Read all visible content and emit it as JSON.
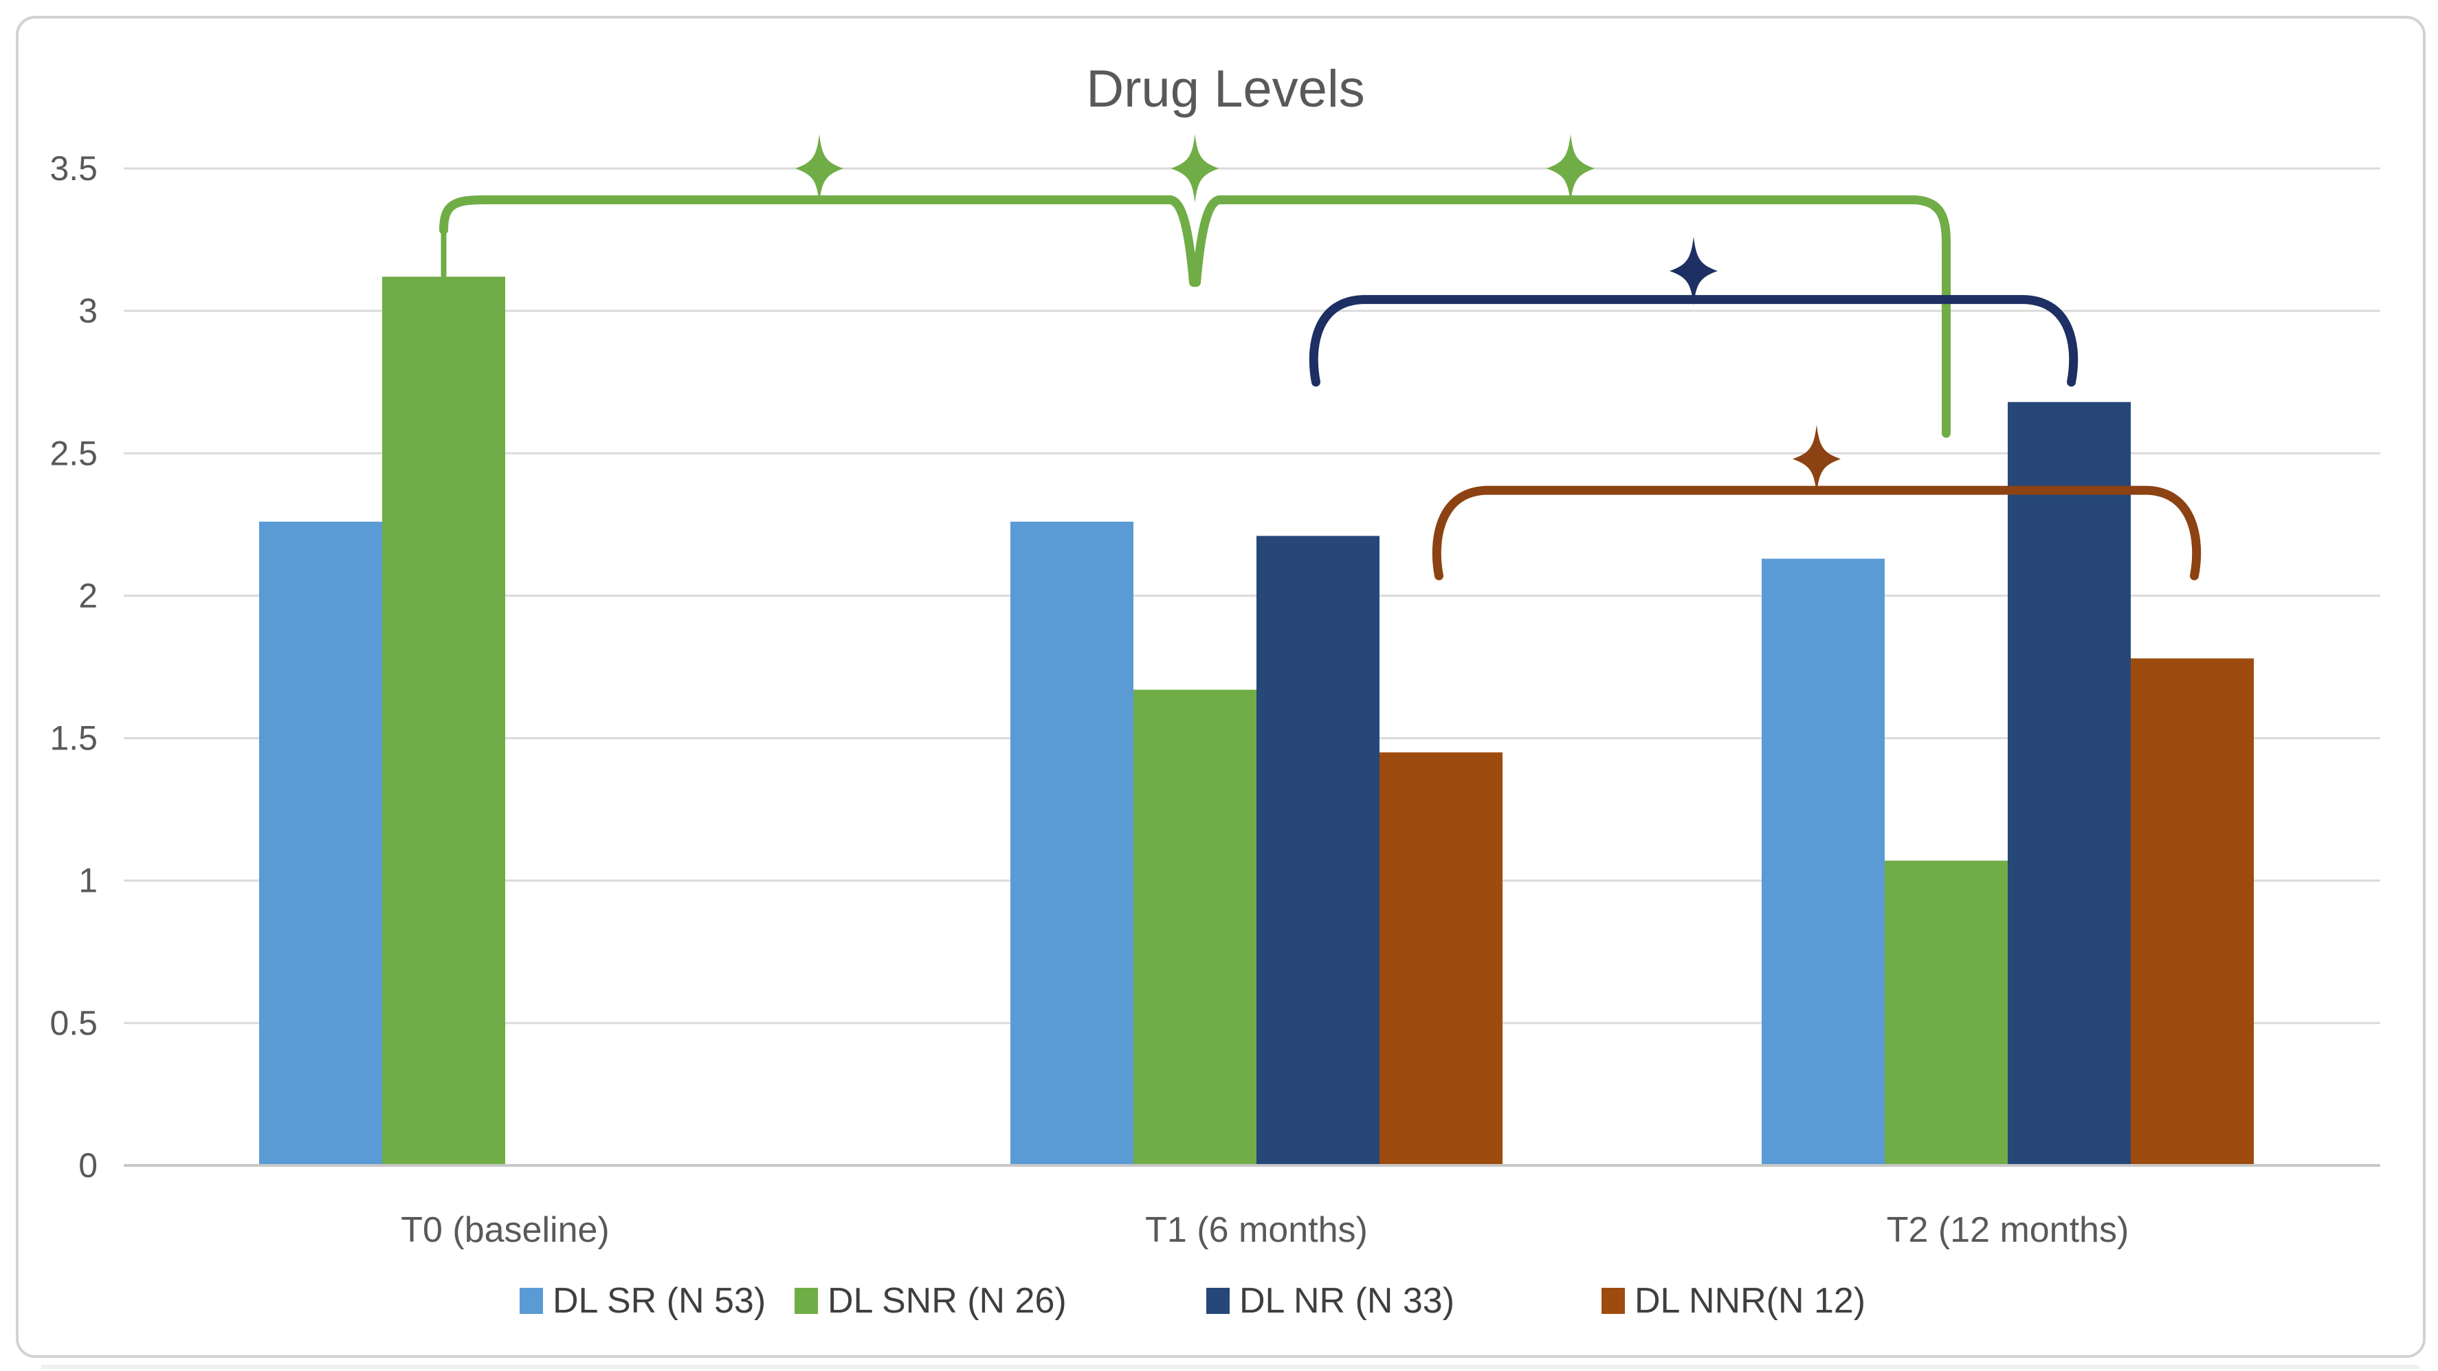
{
  "chart_data": {
    "type": "bar",
    "title": "Drug Levels",
    "title_color": "#595959",
    "xlabel": "",
    "ylabel": "",
    "ylim": [
      0,
      3.5
    ],
    "ytick_step": 0.5,
    "ytick_labels": [
      "0",
      "0.5",
      "1",
      "1.5",
      "2",
      "2.5",
      "3",
      "3.5"
    ],
    "grid": true,
    "gridline_color": "#DADADA",
    "axis_line_color": "#C8C8C8",
    "frame_border_color": "#D2D2D2",
    "tick_label_color": "#595959",
    "category_label_color": "#595959",
    "legend_position": "bottom",
    "legend_text_color": "#3F3F3F",
    "categories": [
      "T0 (baseline)",
      "T1 (6 months)",
      "T2 (12 months)"
    ],
    "series": [
      {
        "name": "DL SR (N 53)",
        "color": "#5B9BD5",
        "values": [
          2.26,
          2.26,
          2.13
        ]
      },
      {
        "name": "DL SNR (N 26)",
        "color": "#70AD47",
        "values": [
          3.12,
          1.67,
          1.07
        ]
      },
      {
        "name": "DL NR (N 33)",
        "color": "#264778",
        "values": [
          null,
          2.21,
          2.68
        ]
      },
      {
        "name": "DL NNR(N 12)",
        "color": "#9E4B10",
        "values": [
          null,
          1.45,
          1.78
        ]
      }
    ],
    "annotations": {
      "brackets": [
        {
          "id": "snr-comparison-bracket",
          "series_index": 1,
          "color": "#70AD47",
          "from_category": 0,
          "dip_category": 1,
          "to_category": 2,
          "level": 3.39,
          "drop_into_start_bar": true,
          "dip_value": 3.1,
          "end_value": 2.57,
          "stars": [
            {
              "between": [
                0,
                1
              ],
              "value": 3.5
            },
            {
              "at": 1,
              "value": 3.5
            },
            {
              "between": [
                1,
                2
              ],
              "value": 3.5
            }
          ]
        },
        {
          "id": "nr-comparison-bracket",
          "series_index": 2,
          "color": "#1D2F63",
          "from_category": 1,
          "to_category": 2,
          "level": 3.04,
          "end_value": 2.75,
          "stars": [
            {
              "between": [
                1,
                2
              ],
              "value": 3.14
            }
          ]
        },
        {
          "id": "nnr-comparison-bracket",
          "series_index": 3,
          "color": "#8C4212",
          "from_category": 1,
          "to_category": 2,
          "level": 2.37,
          "end_value": 2.07,
          "stars": [
            {
              "between": [
                1,
                2
              ],
              "value": 2.48
            }
          ]
        }
      ]
    }
  }
}
